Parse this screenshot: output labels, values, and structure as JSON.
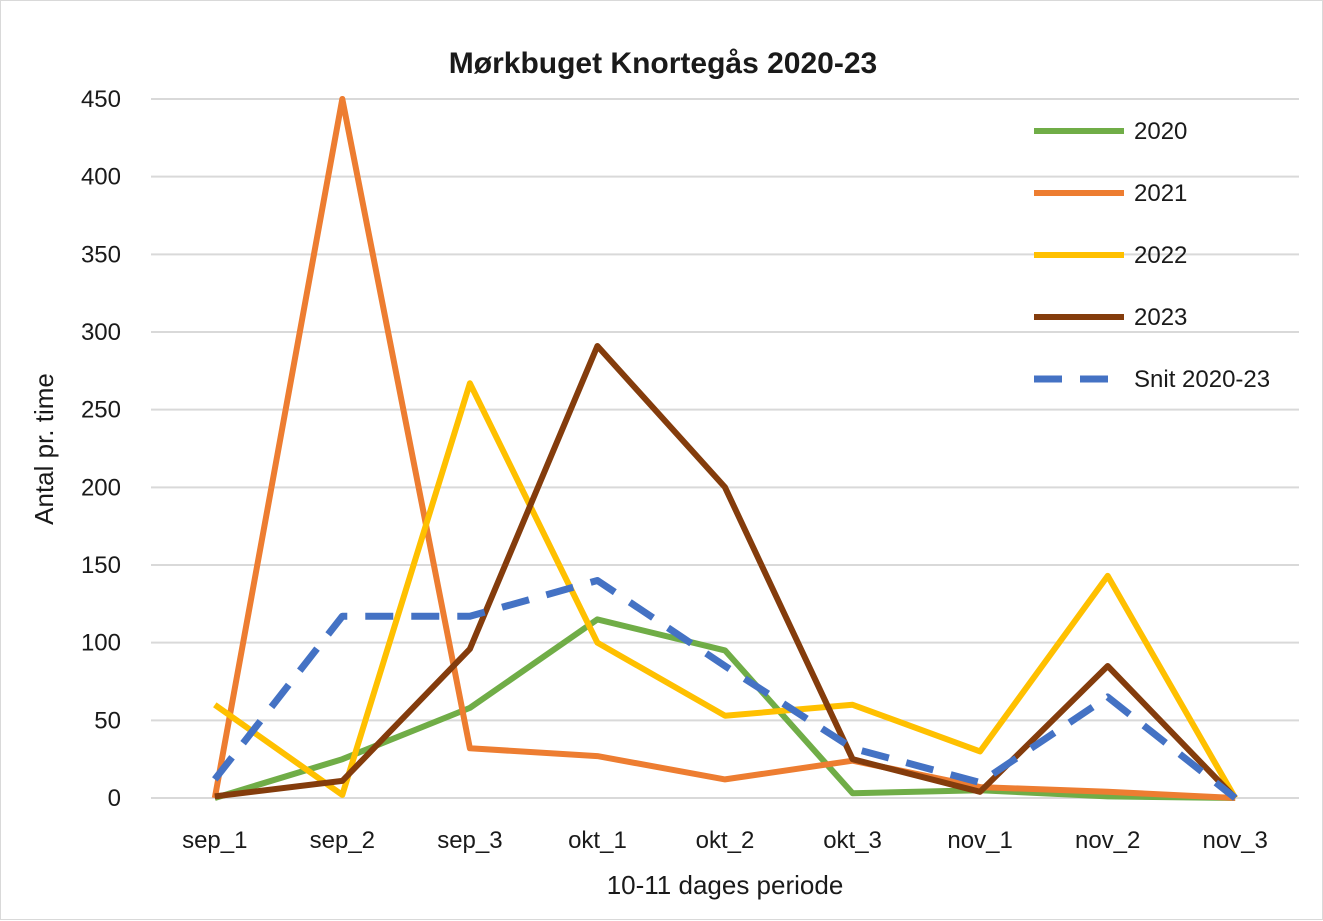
{
  "chart_data": {
    "type": "line",
    "title": "Mørkbuget Knortegås 2020-23",
    "xlabel": "10-11 dages periode",
    "ylabel": "Antal pr. time",
    "categories": [
      "sep_1",
      "sep_2",
      "sep_3",
      "okt_1",
      "okt_2",
      "okt_3",
      "nov_1",
      "nov_2",
      "nov_3"
    ],
    "ylim": [
      0,
      450
    ],
    "yticks": [
      0,
      50,
      100,
      150,
      200,
      250,
      300,
      350,
      400,
      450
    ],
    "grid": true,
    "legend_position": "top-right",
    "series": [
      {
        "name": "2020",
        "color": "#70ad47",
        "dashed": false,
        "values": [
          0,
          25,
          58,
          115,
          95,
          3,
          5,
          1,
          0
        ]
      },
      {
        "name": "2021",
        "color": "#ed7d31",
        "dashed": false,
        "values": [
          0,
          450,
          32,
          27,
          12,
          24,
          7,
          4,
          0
        ]
      },
      {
        "name": "2022",
        "color": "#ffc000",
        "dashed": false,
        "values": [
          60,
          2,
          267,
          100,
          53,
          60,
          30,
          143,
          0
        ]
      },
      {
        "name": "2023",
        "color": "#843c0c",
        "dashed": false,
        "values": [
          1,
          11,
          96,
          291,
          200,
          25,
          4,
          85,
          0
        ]
      },
      {
        "name": "Snit 2020-23",
        "color": "#4472c4",
        "dashed": true,
        "values": [
          12,
          117,
          117,
          140,
          85,
          32,
          10,
          65,
          0
        ]
      }
    ]
  }
}
